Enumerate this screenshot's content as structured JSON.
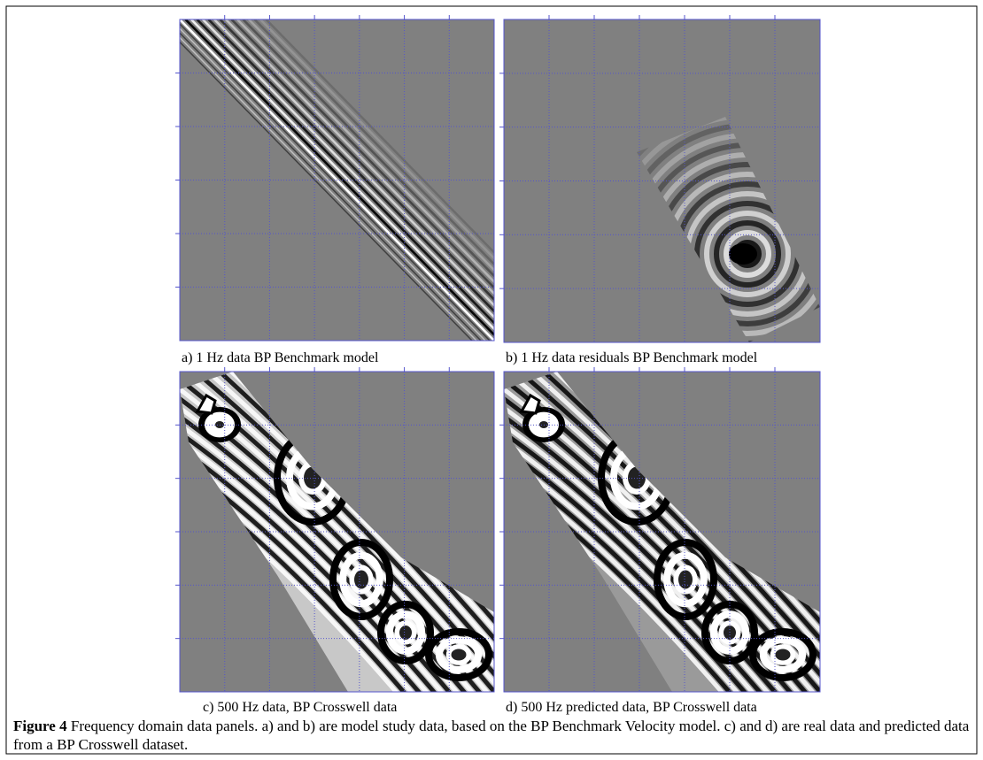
{
  "panels": [
    {
      "caption": "a) 1 Hz data BP Benchmark model"
    },
    {
      "caption": "b) 1 Hz data residuals BP Benchmark model"
    },
    {
      "caption": "c) 500 Hz data, BP Crosswell data"
    },
    {
      "caption": "d) 500 Hz predicted data, BP Crosswell data"
    }
  ],
  "figure_caption": {
    "label": "Figure 4",
    "text": "Frequency domain data panels. a) and b) are model study data, based on the BP Benchmark Velocity model. c) and d) are real data and predicted data from a BP Crosswell dataset."
  }
}
